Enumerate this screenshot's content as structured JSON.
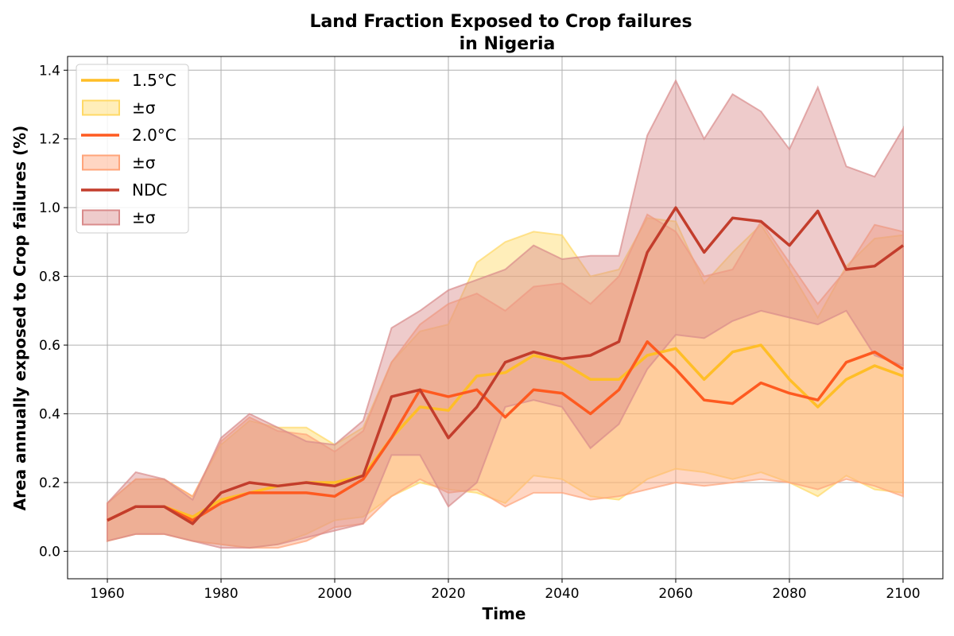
{
  "chart_data": {
    "type": "line",
    "title": "Land Fraction Exposed to Crop failures",
    "subtitle": "in Nigeria",
    "xlabel": "Time",
    "ylabel": "Area annually exposed to Crop failures (%)",
    "xlim": [
      1953,
      2107
    ],
    "ylim": [
      -0.08,
      1.44
    ],
    "xticks": [
      "1960",
      "1980",
      "2000",
      "2020",
      "2040",
      "2060",
      "2080",
      "2100"
    ],
    "yticks": [
      "0.0",
      "0.2",
      "0.4",
      "0.6",
      "0.8",
      "1.0",
      "1.2",
      "1.4"
    ],
    "grid": true,
    "legend_position": "top-left",
    "legend": [
      {
        "label": "1.5°C",
        "kind": "line",
        "series": 0
      },
      {
        "label": "±σ",
        "kind": "band",
        "series": 0
      },
      {
        "label": "2.0°C",
        "kind": "line",
        "series": 1
      },
      {
        "label": "±σ",
        "kind": "band",
        "series": 1
      },
      {
        "label": "NDC",
        "kind": "line",
        "series": 2
      },
      {
        "label": "±σ",
        "kind": "band",
        "series": 2
      }
    ],
    "x": [
      1960,
      1965,
      1970,
      1975,
      1980,
      1985,
      1990,
      1995,
      2000,
      2005,
      2010,
      2015,
      2020,
      2025,
      2030,
      2035,
      2040,
      2045,
      2050,
      2055,
      2060,
      2065,
      2070,
      2075,
      2080,
      2085,
      2090,
      2095,
      2100
    ],
    "series": [
      {
        "name": "1.5°C",
        "color": "#ffbe27",
        "band_color": "#ffd966",
        "mean": [
          0.09,
          0.13,
          0.13,
          0.1,
          0.15,
          0.17,
          0.19,
          0.2,
          0.2,
          0.22,
          0.33,
          0.42,
          0.41,
          0.51,
          0.52,
          0.57,
          0.55,
          0.5,
          0.5,
          0.57,
          0.59,
          0.5,
          0.58,
          0.6,
          0.5,
          0.42,
          0.5,
          0.54,
          0.51
        ],
        "upper": [
          0.14,
          0.21,
          0.21,
          0.16,
          0.31,
          0.38,
          0.36,
          0.36,
          0.31,
          0.36,
          0.55,
          0.64,
          0.66,
          0.84,
          0.9,
          0.93,
          0.92,
          0.8,
          0.82,
          0.97,
          0.96,
          0.78,
          0.87,
          0.95,
          0.82,
          0.68,
          0.83,
          0.91,
          0.92
        ],
        "lower": [
          0.03,
          0.05,
          0.05,
          0.03,
          0.02,
          0.01,
          0.02,
          0.05,
          0.09,
          0.1,
          0.16,
          0.2,
          0.18,
          0.17,
          0.14,
          0.22,
          0.21,
          0.16,
          0.15,
          0.21,
          0.24,
          0.23,
          0.21,
          0.23,
          0.2,
          0.16,
          0.22,
          0.18,
          0.17
        ]
      },
      {
        "name": "2.0°C",
        "color": "#fe5a20",
        "band_color": "#ffa47a",
        "mean": [
          0.09,
          0.13,
          0.13,
          0.09,
          0.14,
          0.17,
          0.17,
          0.17,
          0.16,
          0.21,
          0.33,
          0.47,
          0.45,
          0.47,
          0.39,
          0.47,
          0.46,
          0.4,
          0.47,
          0.61,
          0.53,
          0.44,
          0.43,
          0.49,
          0.46,
          0.44,
          0.55,
          0.58,
          0.53
        ],
        "upper": [
          0.14,
          0.21,
          0.21,
          0.16,
          0.32,
          0.39,
          0.35,
          0.34,
          0.29,
          0.35,
          0.55,
          0.66,
          0.72,
          0.75,
          0.7,
          0.77,
          0.78,
          0.72,
          0.8,
          0.98,
          0.93,
          0.8,
          0.82,
          0.96,
          0.84,
          0.72,
          0.82,
          0.95,
          0.93
        ],
        "lower": [
          0.03,
          0.05,
          0.05,
          0.03,
          0.02,
          0.01,
          0.01,
          0.03,
          0.07,
          0.08,
          0.16,
          0.21,
          0.17,
          0.18,
          0.13,
          0.17,
          0.17,
          0.15,
          0.16,
          0.18,
          0.2,
          0.19,
          0.2,
          0.21,
          0.2,
          0.18,
          0.21,
          0.19,
          0.16
        ]
      },
      {
        "name": "NDC",
        "color": "#c33d2c",
        "band_color": "#d98b8b",
        "mean": [
          0.09,
          0.13,
          0.13,
          0.08,
          0.17,
          0.2,
          0.19,
          0.2,
          0.19,
          0.22,
          0.45,
          0.47,
          0.33,
          0.42,
          0.55,
          0.58,
          0.56,
          0.57,
          0.61,
          0.87,
          1.0,
          0.87,
          0.97,
          0.96,
          0.89,
          0.99,
          0.82,
          0.83,
          0.89
        ],
        "upper": [
          0.14,
          0.23,
          0.21,
          0.15,
          0.33,
          0.4,
          0.36,
          0.32,
          0.31,
          0.38,
          0.65,
          0.7,
          0.76,
          0.79,
          0.82,
          0.89,
          0.85,
          0.86,
          0.86,
          1.21,
          1.37,
          1.2,
          1.33,
          1.28,
          1.17,
          1.35,
          1.12,
          1.09,
          1.23
        ],
        "lower": [
          0.03,
          0.05,
          0.05,
          0.03,
          0.01,
          0.01,
          0.02,
          0.04,
          0.06,
          0.08,
          0.28,
          0.28,
          0.13,
          0.2,
          0.42,
          0.44,
          0.42,
          0.3,
          0.37,
          0.53,
          0.63,
          0.62,
          0.67,
          0.7,
          0.68,
          0.66,
          0.7,
          0.57,
          0.54
        ]
      }
    ]
  }
}
